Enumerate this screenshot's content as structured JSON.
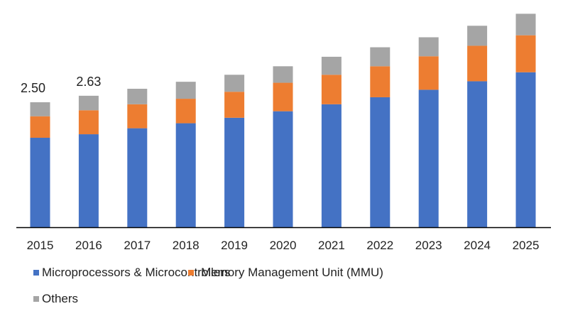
{
  "chart_data": {
    "type": "bar",
    "stacked": true,
    "title": "",
    "xlabel": "",
    "ylabel": "",
    "categories": [
      "2015",
      "2016",
      "2017",
      "2018",
      "2019",
      "2020",
      "2021",
      "2022",
      "2023",
      "2024",
      "2025"
    ],
    "series": [
      {
        "name": "Microprocessors & Microcontrollers",
        "color": "#4472c4",
        "values": [
          1.79,
          1.86,
          1.98,
          2.08,
          2.19,
          2.32,
          2.46,
          2.6,
          2.75,
          2.92,
          3.1
        ]
      },
      {
        "name": "Memory Management Unit (MMU)",
        "color": "#ed7d31",
        "values": [
          0.43,
          0.48,
          0.48,
          0.49,
          0.52,
          0.57,
          0.59,
          0.62,
          0.67,
          0.71,
          0.74
        ]
      },
      {
        "name": "Others",
        "color": "#a5a5a5",
        "values": [
          0.28,
          0.29,
          0.31,
          0.34,
          0.34,
          0.33,
          0.36,
          0.38,
          0.38,
          0.4,
          0.43
        ]
      }
    ],
    "data_labels": [
      {
        "category": "2015",
        "text": "2.50"
      },
      {
        "category": "2016",
        "text": "2.63"
      }
    ],
    "ylim": [
      0,
      4.5
    ],
    "y_axis_visible": false,
    "grid": false,
    "legend_position": "bottom"
  }
}
